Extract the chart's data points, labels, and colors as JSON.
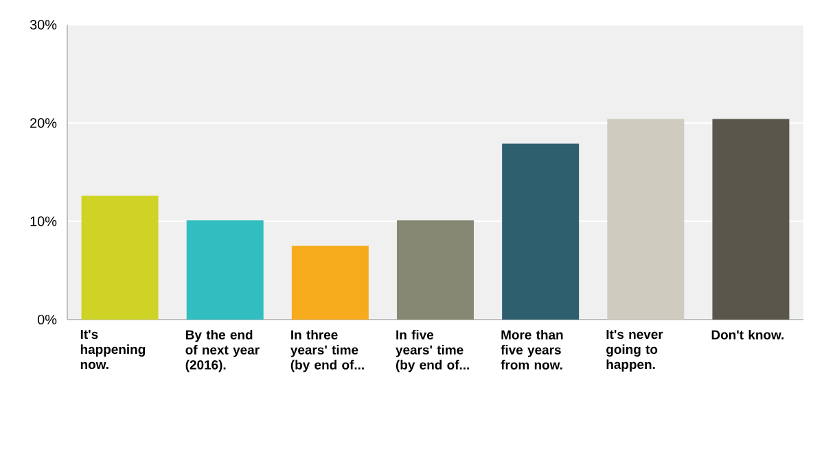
{
  "chart_data": {
    "type": "bar",
    "categories": [
      "It's happening now.",
      "By the end of next year (2016).",
      "In three years' time (by end of...",
      "In five years' time (by end of...",
      "More than five years from now.",
      "It's never going to happen.",
      "Don't know."
    ],
    "values": [
      12.6,
      10.1,
      7.5,
      10.1,
      17.9,
      20.4,
      20.4
    ],
    "colors": [
      "#cfd325",
      "#32bdc1",
      "#f6ab1d",
      "#878874",
      "#2d5f6e",
      "#cfccbf",
      "#59574b"
    ],
    "ylim": [
      0,
      30
    ],
    "yticks": [
      {
        "value": 0,
        "label": "0%"
      },
      {
        "value": 10,
        "label": "10%"
      },
      {
        "value": 20,
        "label": "20%"
      },
      {
        "value": 30,
        "label": "30%"
      }
    ],
    "grid": "y"
  }
}
